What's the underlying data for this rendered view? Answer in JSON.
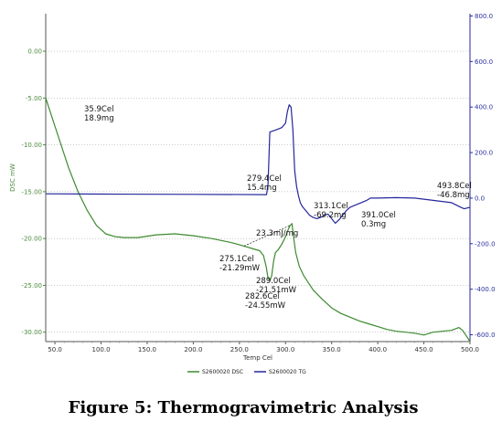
{
  "caption": "Figure 5: Thermogravimetric Analysis",
  "chart_data": {
    "type": "line",
    "xlabel": "Temp Cel",
    "ylabel_left": "DSC mW",
    "ylabel_right": "",
    "xlim": [
      40,
      500
    ],
    "ylim_left": [
      -31,
      4
    ],
    "ylim_right": [
      -630,
      810
    ],
    "x_ticks": [
      "50.0",
      "100.0",
      "150.0",
      "200.0",
      "250.0",
      "300.0",
      "350.0",
      "400.0",
      "450.0",
      "500.0"
    ],
    "left_ticks": [
      "0.00",
      "-5.00",
      "-10.00",
      "-15.00",
      "-20.00",
      "-25.00",
      "-30.00"
    ],
    "right_ticks": [
      "800.0",
      "600.0",
      "400.0",
      "200.0",
      "0.0",
      "-200.0",
      "-400.0",
      "-600.0"
    ],
    "colors": {
      "dsc": "#3c8a2e",
      "tg": "#24279a",
      "grid": "#999999"
    },
    "series": [
      {
        "name": "S2600020 DSC",
        "axis": "left",
        "color": "#3c8a2e",
        "x": [
          40,
          45,
          55,
          65,
          75,
          85,
          95,
          105,
          115,
          125,
          140,
          160,
          180,
          200,
          220,
          240,
          255,
          265,
          272,
          276,
          279,
          281,
          283,
          285,
          287,
          289,
          292,
          296,
          300,
          303,
          305,
          307,
          309,
          311,
          315,
          320,
          330,
          340,
          350,
          360,
          370,
          380,
          390,
          400,
          410,
          420,
          430,
          440,
          450,
          460,
          470,
          480,
          488,
          492,
          496,
          500
        ],
        "y": [
          -5.0,
          -6.5,
          -9.5,
          -12.5,
          -15.0,
          -17.0,
          -18.6,
          -19.5,
          -19.8,
          -19.9,
          -19.9,
          -19.6,
          -19.5,
          -19.7,
          -20.0,
          -20.4,
          -20.8,
          -21.1,
          -21.3,
          -21.8,
          -23.0,
          -24.2,
          -24.5,
          -24.0,
          -22.5,
          -21.5,
          -21.2,
          -20.6,
          -19.8,
          -19.0,
          -18.6,
          -18.4,
          -20.0,
          -21.5,
          -23.0,
          -24.0,
          -25.5,
          -26.5,
          -27.4,
          -28.0,
          -28.4,
          -28.8,
          -29.1,
          -29.4,
          -29.7,
          -29.9,
          -30.0,
          -30.1,
          -30.3,
          -30.0,
          -29.9,
          -29.8,
          -29.5,
          -29.8,
          -30.4,
          -31.0
        ]
      },
      {
        "name": "S2600020 TG",
        "axis": "right",
        "color": "#24279a",
        "x": [
          40,
          100,
          200,
          278,
          279.4,
          281,
          283,
          290,
          296,
          300,
          302,
          304,
          306,
          308,
          310,
          312,
          314,
          316,
          318,
          320,
          323,
          326,
          330,
          334,
          338,
          342,
          346,
          350,
          354,
          358,
          362,
          366,
          370,
          376,
          382,
          388,
          392,
          400,
          420,
          440,
          460,
          480,
          490,
          493.8,
          500
        ],
        "y": [
          18.9,
          18.0,
          16.5,
          15.4,
          15.4,
          60.0,
          290.0,
          300.0,
          310.0,
          330.0,
          380.0,
          410.0,
          400.0,
          300.0,
          120.0,
          50.0,
          10.0,
          -20.0,
          -35.0,
          -45.0,
          -60.0,
          -75.0,
          -85.0,
          -90.0,
          -85.0,
          -75.0,
          -70.0,
          -90.0,
          -110.0,
          -95.0,
          -75.0,
          -55.0,
          -40.0,
          -30.0,
          -20.0,
          -10.0,
          0.3,
          0.0,
          2.0,
          0.0,
          -10.0,
          -20.0,
          -40.0,
          -46.8,
          -40.0
        ]
      }
    ],
    "annotations": [
      {
        "lines": [
          "35.9Cel",
          "18.9mg"
        ]
      },
      {
        "lines": [
          "279.4Cel",
          "15.4mg"
        ]
      },
      {
        "lines": [
          "313.1Cel",
          "-69.2mg"
        ]
      },
      {
        "lines": [
          "391.0Cel",
          "0.3mg"
        ]
      },
      {
        "lines": [
          "493.8Cel",
          "-46.8mg"
        ]
      },
      {
        "lines": [
          "23.3mJ/mg"
        ]
      },
      {
        "lines": [
          "275.1Cel",
          "-21.29mW"
        ]
      },
      {
        "lines": [
          "282.6Cel",
          "-24.55mW"
        ]
      },
      {
        "lines": [
          "289.0Cel",
          "-21.51mW"
        ]
      }
    ],
    "legend": {
      "placement": "bottom-center"
    }
  }
}
